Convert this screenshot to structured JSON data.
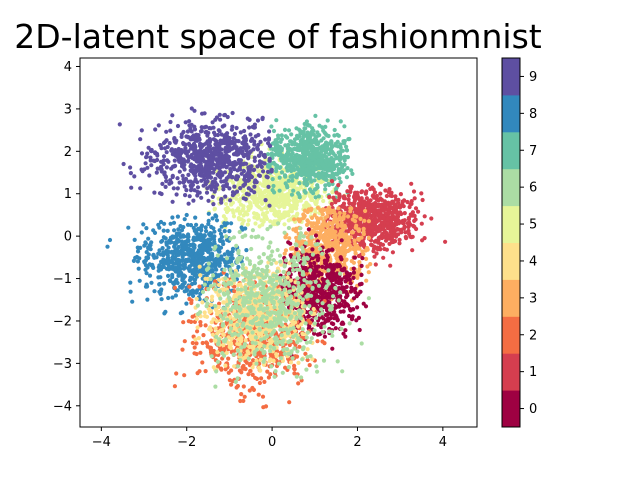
{
  "chart_data": {
    "type": "scatter",
    "title": "2D-latent space of fashionmnist",
    "xlabel": "",
    "ylabel": "",
    "xlim": [
      -4.5,
      4.8
    ],
    "ylim": [
      -4.5,
      4.2
    ],
    "x_ticks": [
      -4,
      -2,
      0,
      2,
      4
    ],
    "y_ticks": [
      -4,
      -3,
      -2,
      -1,
      0,
      1,
      2,
      3,
      4
    ],
    "grid": false,
    "colorbar": {
      "ticks": [
        "0",
        "1",
        "2",
        "3",
        "4",
        "5",
        "6",
        "7",
        "8",
        "9"
      ],
      "colors": [
        "#9e0142",
        "#d53e4f",
        "#f46d43",
        "#fdae61",
        "#fee08b",
        "#e6f598",
        "#abdda4",
        "#66c2a5",
        "#3288bd",
        "#5e4fa2"
      ]
    },
    "series": [
      {
        "label": "0",
        "color": "#9e0142",
        "center": [
          1.0,
          -1.3
        ],
        "spread": [
          0.55,
          0.5
        ],
        "approx_n": 600,
        "x_range": [
          0.2,
          2.2
        ],
        "y_range": [
          -3.1,
          0.2
        ]
      },
      {
        "label": "1",
        "color": "#d53e4f",
        "center": [
          2.3,
          0.4
        ],
        "spread": [
          0.5,
          0.35
        ],
        "approx_n": 700,
        "x_range": [
          1.2,
          4.4
        ],
        "y_range": [
          -1.3,
          1.3
        ]
      },
      {
        "label": "2",
        "color": "#f46d43",
        "center": [
          -0.5,
          -2.3
        ],
        "spread": [
          0.65,
          0.65
        ],
        "approx_n": 650,
        "x_range": [
          -2.3,
          1.3
        ],
        "y_range": [
          -4.1,
          -0.7
        ]
      },
      {
        "label": "3",
        "color": "#fdae61",
        "center": [
          1.3,
          -0.3
        ],
        "spread": [
          0.45,
          0.55
        ],
        "approx_n": 550,
        "x_range": [
          0.2,
          2.3
        ],
        "y_range": [
          -1.8,
          0.7
        ]
      },
      {
        "label": "4",
        "color": "#fee08b",
        "center": [
          -0.4,
          -1.9
        ],
        "spread": [
          0.6,
          0.55
        ],
        "approx_n": 600,
        "x_range": [
          -1.8,
          1.0
        ],
        "y_range": [
          -3.2,
          -0.6
        ]
      },
      {
        "label": "5",
        "color": "#e6f598",
        "center": [
          0.0,
          1.0
        ],
        "spread": [
          0.65,
          0.38
        ],
        "approx_n": 650,
        "x_range": [
          -1.6,
          1.8
        ],
        "y_range": [
          0.2,
          3.7
        ]
      },
      {
        "label": "6",
        "color": "#abdda4",
        "center": [
          -0.1,
          -1.5
        ],
        "spread": [
          0.75,
          0.8
        ],
        "approx_n": 600,
        "x_range": [
          -1.8,
          2.4
        ],
        "y_range": [
          -3.6,
          0.3
        ]
      },
      {
        "label": "7",
        "color": "#66c2a5",
        "center": [
          0.9,
          1.8
        ],
        "spread": [
          0.5,
          0.38
        ],
        "approx_n": 650,
        "x_range": [
          -0.1,
          1.9
        ],
        "y_range": [
          0.9,
          3.8
        ]
      },
      {
        "label": "8",
        "color": "#3288bd",
        "center": [
          -1.9,
          -0.5
        ],
        "spread": [
          0.6,
          0.45
        ],
        "approx_n": 650,
        "x_range": [
          -4.0,
          -0.4
        ],
        "y_range": [
          -2.6,
          0.6
        ]
      },
      {
        "label": "9",
        "color": "#5e4fa2",
        "center": [
          -1.4,
          1.8
        ],
        "spread": [
          0.75,
          0.45
        ],
        "approx_n": 750,
        "x_range": [
          -4.1,
          0.0
        ],
        "y_range": [
          0.6,
          3.3
        ]
      }
    ]
  }
}
